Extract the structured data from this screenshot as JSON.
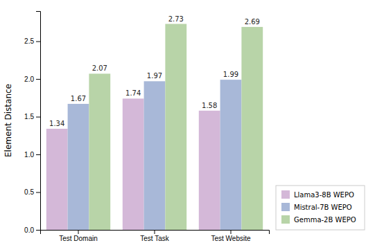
{
  "chart_data": {
    "type": "bar",
    "categories": [
      "Test Domain",
      "Test Task",
      "Test Website"
    ],
    "series": [
      {
        "name": "Llama3-8B WEPO",
        "values": [
          1.34,
          1.74,
          1.58
        ],
        "color": "#d4b8d8"
      },
      {
        "name": "Mistral-7B WEPO",
        "values": [
          1.67,
          1.97,
          1.99
        ],
        "color": "#a8b8d8"
      },
      {
        "name": "Gemma-2B WEPO",
        "values": [
          2.07,
          2.73,
          2.69
        ],
        "color": "#b8d4a8"
      }
    ],
    "ylabel": "Element Distance",
    "ylim": [
      0.0,
      2.9
    ],
    "yticks": [
      {
        "value": 0,
        "label": "0.0"
      },
      0.5,
      {
        "value": 1,
        "label": "1.0"
      },
      1.5,
      {
        "value": 2,
        "label": "2.0"
      },
      2.5
    ],
    "grid": false,
    "legend": "lower right",
    "data_labels": true
  }
}
